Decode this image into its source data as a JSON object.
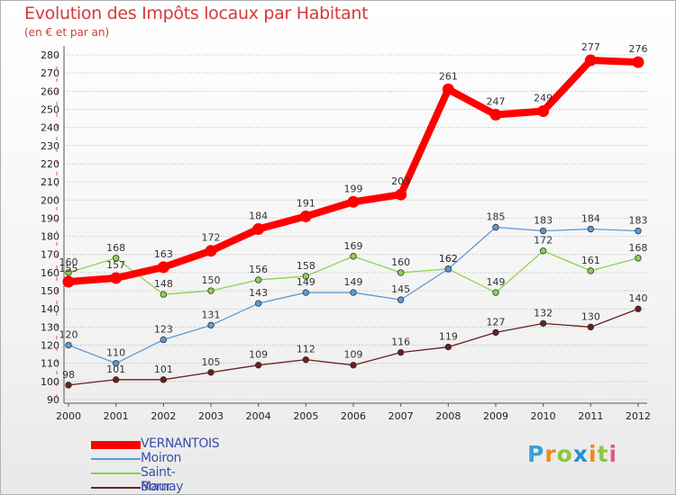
{
  "header": {
    "title": "Evolution des Impôts locaux par Habitant",
    "subtitle": "(en € et par an)"
  },
  "logo": {
    "text": "Proxiti",
    "letters": [
      {
        "ch": "P",
        "color": "#3aa0d8"
      },
      {
        "ch": "r",
        "color": "#f08a1c"
      },
      {
        "ch": "o",
        "color": "#8cc63f"
      },
      {
        "ch": "x",
        "color": "#2a8fd0"
      },
      {
        "ch": "i",
        "color": "#f08a1c"
      },
      {
        "ch": "t",
        "color": "#8cc63f"
      },
      {
        "ch": "i",
        "color": "#e05a8a"
      }
    ]
  },
  "chart_data": {
    "type": "line",
    "title": "Evolution des Impôts locaux par Habitant",
    "subtitle": "(en € et par an)",
    "xlabel": "",
    "ylabel": "",
    "x": [
      2000,
      2001,
      2002,
      2003,
      2004,
      2005,
      2006,
      2007,
      2008,
      2009,
      2010,
      2011,
      2012
    ],
    "ylim": [
      90,
      280
    ],
    "yticks": [
      90,
      100,
      110,
      120,
      130,
      140,
      150,
      160,
      170,
      180,
      190,
      200,
      210,
      220,
      230,
      240,
      250,
      260,
      270,
      280
    ],
    "grid": "horizontal dotted",
    "legend_position": "bottom-left",
    "series": [
      {
        "name": "VERNANTOIS",
        "color": "#ff0000",
        "values": [
          155,
          157,
          163,
          172,
          184,
          191,
          199,
          203,
          261,
          247,
          249,
          277,
          276
        ]
      },
      {
        "name": "Moiron",
        "color": "#5b9bd5",
        "values": [
          120,
          110,
          123,
          131,
          143,
          149,
          149,
          145,
          162,
          185,
          183,
          184,
          183
        ]
      },
      {
        "name": "Saint-Maur",
        "color": "#8ed14f",
        "values": [
          160,
          168,
          148,
          150,
          156,
          158,
          169,
          160,
          162,
          149,
          172,
          161,
          168
        ]
      },
      {
        "name": "Bornay",
        "color": "#6b1e1e",
        "values": [
          98,
          101,
          101,
          105,
          109,
          112,
          109,
          116,
          119,
          127,
          132,
          130,
          140
        ]
      }
    ]
  }
}
